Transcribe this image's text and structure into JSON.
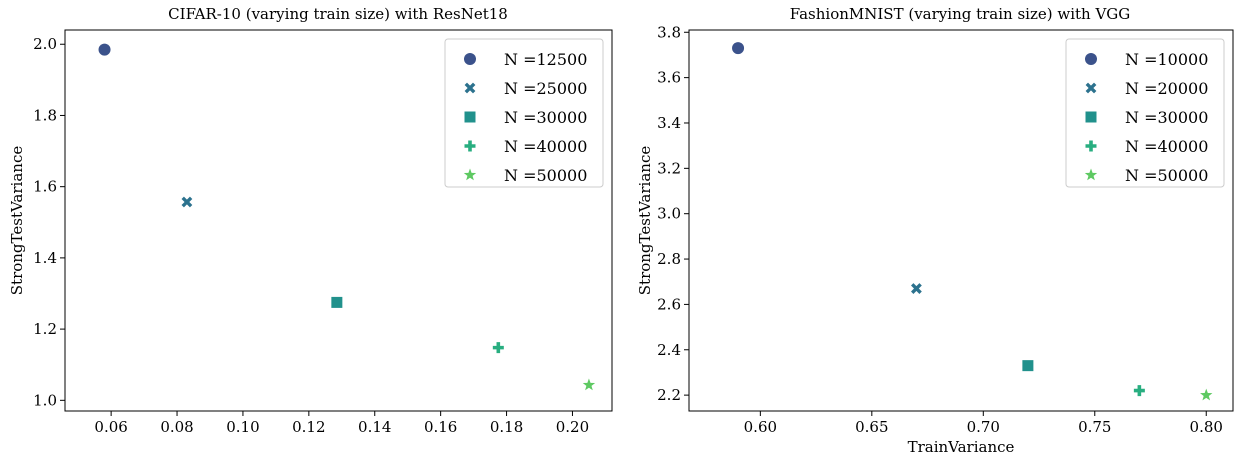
{
  "chart_data": [
    {
      "type": "scatter",
      "title": "CIFAR-10 (varying train size) with ResNet18",
      "xlabel": "",
      "ylabel": "StrongTestVariance",
      "xlim": [
        0.046,
        0.212
      ],
      "ylim": [
        0.97,
        2.04
      ],
      "xticks": [
        0.06,
        0.08,
        0.1,
        0.12,
        0.14,
        0.16,
        0.18,
        0.2
      ],
      "xtick_labels": [
        "0.06",
        "0.08",
        "0.10",
        "0.12",
        "0.14",
        "0.16",
        "0.18",
        "0.20"
      ],
      "yticks": [
        1.0,
        1.2,
        1.4,
        1.6,
        1.8,
        2.0
      ],
      "ytick_labels": [
        "1.0",
        "1.2",
        "1.4",
        "1.6",
        "1.8",
        "2.0"
      ],
      "legend_position": "top-right",
      "series": [
        {
          "name": "N =12500",
          "marker": "circle",
          "color": "#3b528b",
          "x": [
            0.058
          ],
          "y": [
            1.985
          ]
        },
        {
          "name": "N =25000",
          "marker": "x",
          "color": "#2c728e",
          "x": [
            0.083
          ],
          "y": [
            1.557
          ]
        },
        {
          "name": "N =30000",
          "marker": "square",
          "color": "#21918c",
          "x": [
            0.1285
          ],
          "y": [
            1.275
          ]
        },
        {
          "name": "N =40000",
          "marker": "plus",
          "color": "#28ae80",
          "x": [
            0.1775
          ],
          "y": [
            1.148
          ]
        },
        {
          "name": "N =50000",
          "marker": "star",
          "color": "#5ec962",
          "x": [
            0.205
          ],
          "y": [
            1.043
          ]
        }
      ]
    },
    {
      "type": "scatter",
      "title": "FashionMNIST (varying train size) with VGG",
      "xlabel": "TrainVariance",
      "ylabel": "StrongTestVariance",
      "xlim": [
        0.568,
        0.812
      ],
      "ylim": [
        2.13,
        3.81
      ],
      "xticks": [
        0.6,
        0.65,
        0.7,
        0.75,
        0.8
      ],
      "xtick_labels": [
        "0.60",
        "0.65",
        "0.70",
        "0.75",
        "0.80"
      ],
      "yticks": [
        2.2,
        2.4,
        2.6,
        2.8,
        3.0,
        3.2,
        3.4,
        3.6,
        3.8
      ],
      "ytick_labels": [
        "2.2",
        "2.4",
        "2.6",
        "2.8",
        "3.0",
        "3.2",
        "3.4",
        "3.6",
        "3.8"
      ],
      "legend_position": "top-right",
      "series": [
        {
          "name": "N =10000",
          "marker": "circle",
          "color": "#3b528b",
          "x": [
            0.59
          ],
          "y": [
            3.73
          ]
        },
        {
          "name": "N =20000",
          "marker": "x",
          "color": "#2c728e",
          "x": [
            0.67
          ],
          "y": [
            2.67
          ]
        },
        {
          "name": "N =30000",
          "marker": "square",
          "color": "#21918c",
          "x": [
            0.72
          ],
          "y": [
            2.33
          ]
        },
        {
          "name": "N =40000",
          "marker": "plus",
          "color": "#28ae80",
          "x": [
            0.77
          ],
          "y": [
            2.22
          ]
        },
        {
          "name": "N =50000",
          "marker": "star",
          "color": "#5ec962",
          "x": [
            0.8
          ],
          "y": [
            2.2
          ]
        }
      ]
    }
  ]
}
